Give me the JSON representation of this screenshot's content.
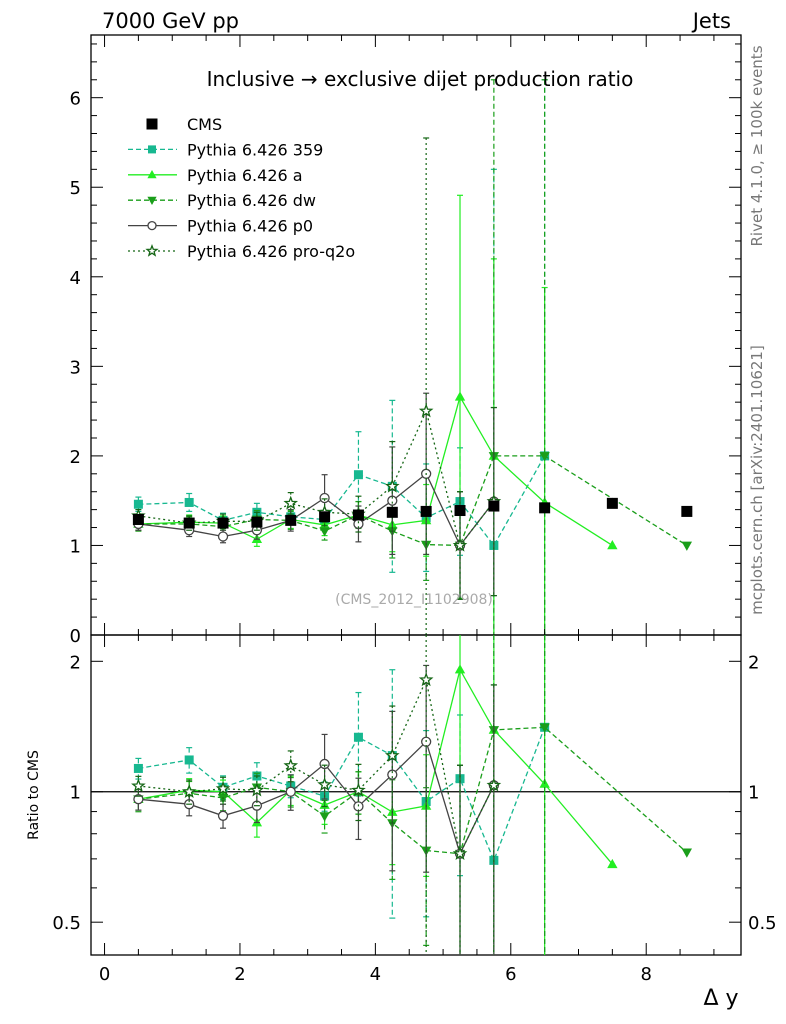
{
  "header": {
    "energy_label": "7000 GeV pp",
    "process_label": "Jets",
    "side_label_top": "Rivet 4.1.0, ≥ 100k events",
    "side_label_bottom": "mcplots.cern.ch [arXiv:2401.10621]"
  },
  "chart_data": {
    "type": "line",
    "title": "Inclusive → exclusive dijet production ratio",
    "watermark": "(CMS_2012_I1102908)",
    "xlabel": "Δ y",
    "ylabel": "",
    "ratio_ylabel": "Ratio to CMS",
    "xlim": [
      -0.2,
      9.4
    ],
    "ylim": [
      0,
      6.7
    ],
    "ratio_ylim": [
      0.42,
      2.3
    ],
    "x_ticks": [
      0,
      2,
      4,
      6,
      8
    ],
    "y_ticks": [
      0,
      1,
      2,
      3,
      4,
      5,
      6
    ],
    "ratio_y_ticks": [
      0.5,
      1,
      2
    ],
    "legend_position": "top-left",
    "reference": {
      "name": "CMS",
      "color": "#000000",
      "x": [
        0.5,
        1.25,
        1.75,
        2.25,
        2.75,
        3.25,
        3.75,
        4.25,
        4.75,
        5.25,
        5.75,
        6.5,
        7.5,
        8.6
      ],
      "y": [
        1.29,
        1.25,
        1.25,
        1.26,
        1.28,
        1.32,
        1.34,
        1.37,
        1.38,
        1.39,
        1.44,
        1.42,
        1.47,
        1.38
      ]
    },
    "series": [
      {
        "name": "Pythia 6.426 359",
        "color": "#17b890",
        "dash": "5,3",
        "marker": "square",
        "x": [
          0.5,
          1.25,
          1.75,
          2.25,
          2.75,
          3.25,
          3.75,
          4.25,
          4.75,
          5.25,
          5.75,
          6.5
        ],
        "y": [
          1.46,
          1.48,
          1.28,
          1.37,
          1.32,
          1.29,
          1.79,
          1.66,
          1.31,
          1.49,
          1.0,
          2.0
        ],
        "err": [
          0.08,
          0.1,
          0.08,
          0.1,
          0.08,
          0.1,
          0.48,
          0.96,
          0.6,
          0.6,
          4.2,
          4.2
        ]
      },
      {
        "name": "Pythia 6.426 a",
        "color": "#22ee22",
        "dash": "",
        "marker": "triangle-up",
        "x": [
          0.5,
          1.25,
          1.75,
          2.25,
          2.75,
          3.25,
          3.75,
          4.25,
          4.75,
          5.25,
          5.75,
          6.5,
          7.5
        ],
        "y": [
          1.24,
          1.26,
          1.25,
          1.07,
          1.29,
          1.23,
          1.34,
          1.23,
          1.28,
          2.66,
          2.0,
          1.48,
          1.0
        ],
        "err": [
          0.07,
          0.08,
          0.08,
          0.08,
          0.1,
          0.12,
          0.15,
          0.3,
          0.4,
          2.25,
          2.2,
          2.4,
          0
        ]
      },
      {
        "name": "Pythia 6.426 dw",
        "color": "#1a9e1a",
        "dash": "5,3",
        "marker": "triangle-down",
        "x": [
          0.5,
          1.25,
          1.75,
          2.25,
          2.75,
          3.25,
          3.75,
          4.25,
          4.75,
          5.25,
          5.75,
          6.5,
          8.6
        ],
        "y": [
          1.24,
          1.24,
          1.21,
          1.29,
          1.28,
          1.16,
          1.34,
          1.16,
          1.01,
          1.0,
          2.0,
          2.0,
          1.0
        ],
        "err": [
          0.08,
          0.08,
          0.08,
          0.1,
          0.1,
          0.1,
          0.15,
          0.3,
          0.4,
          0.6,
          4.2,
          4.2,
          0
        ]
      },
      {
        "name": "Pythia 6.426 p0",
        "color": "#444444",
        "dash": "",
        "marker": "circle-open",
        "x": [
          0.5,
          1.25,
          1.75,
          2.25,
          2.75,
          3.25,
          3.75,
          4.25,
          4.75,
          5.25,
          5.75
        ],
        "y": [
          1.24,
          1.17,
          1.1,
          1.17,
          1.28,
          1.53,
          1.24,
          1.5,
          1.8,
          1.0,
          1.49
        ],
        "err": [
          0.07,
          0.07,
          0.07,
          0.1,
          0.12,
          0.26,
          0.2,
          0.6,
          0.9,
          0.6,
          1.05
        ]
      },
      {
        "name": "Pythia 6.426 pro-q2o",
        "color": "#156615",
        "dash": "2,3",
        "marker": "star-open",
        "x": [
          0.5,
          1.25,
          1.75,
          2.25,
          2.75,
          3.25,
          3.75,
          4.25,
          4.75,
          5.25,
          5.75
        ],
        "y": [
          1.33,
          1.25,
          1.27,
          1.27,
          1.47,
          1.37,
          1.35,
          1.66,
          2.5,
          1.0,
          1.49
        ],
        "err": [
          0.07,
          0.08,
          0.08,
          0.1,
          0.12,
          0.15,
          0.2,
          0.5,
          3.05,
          0.6,
          1.05
        ]
      }
    ]
  }
}
